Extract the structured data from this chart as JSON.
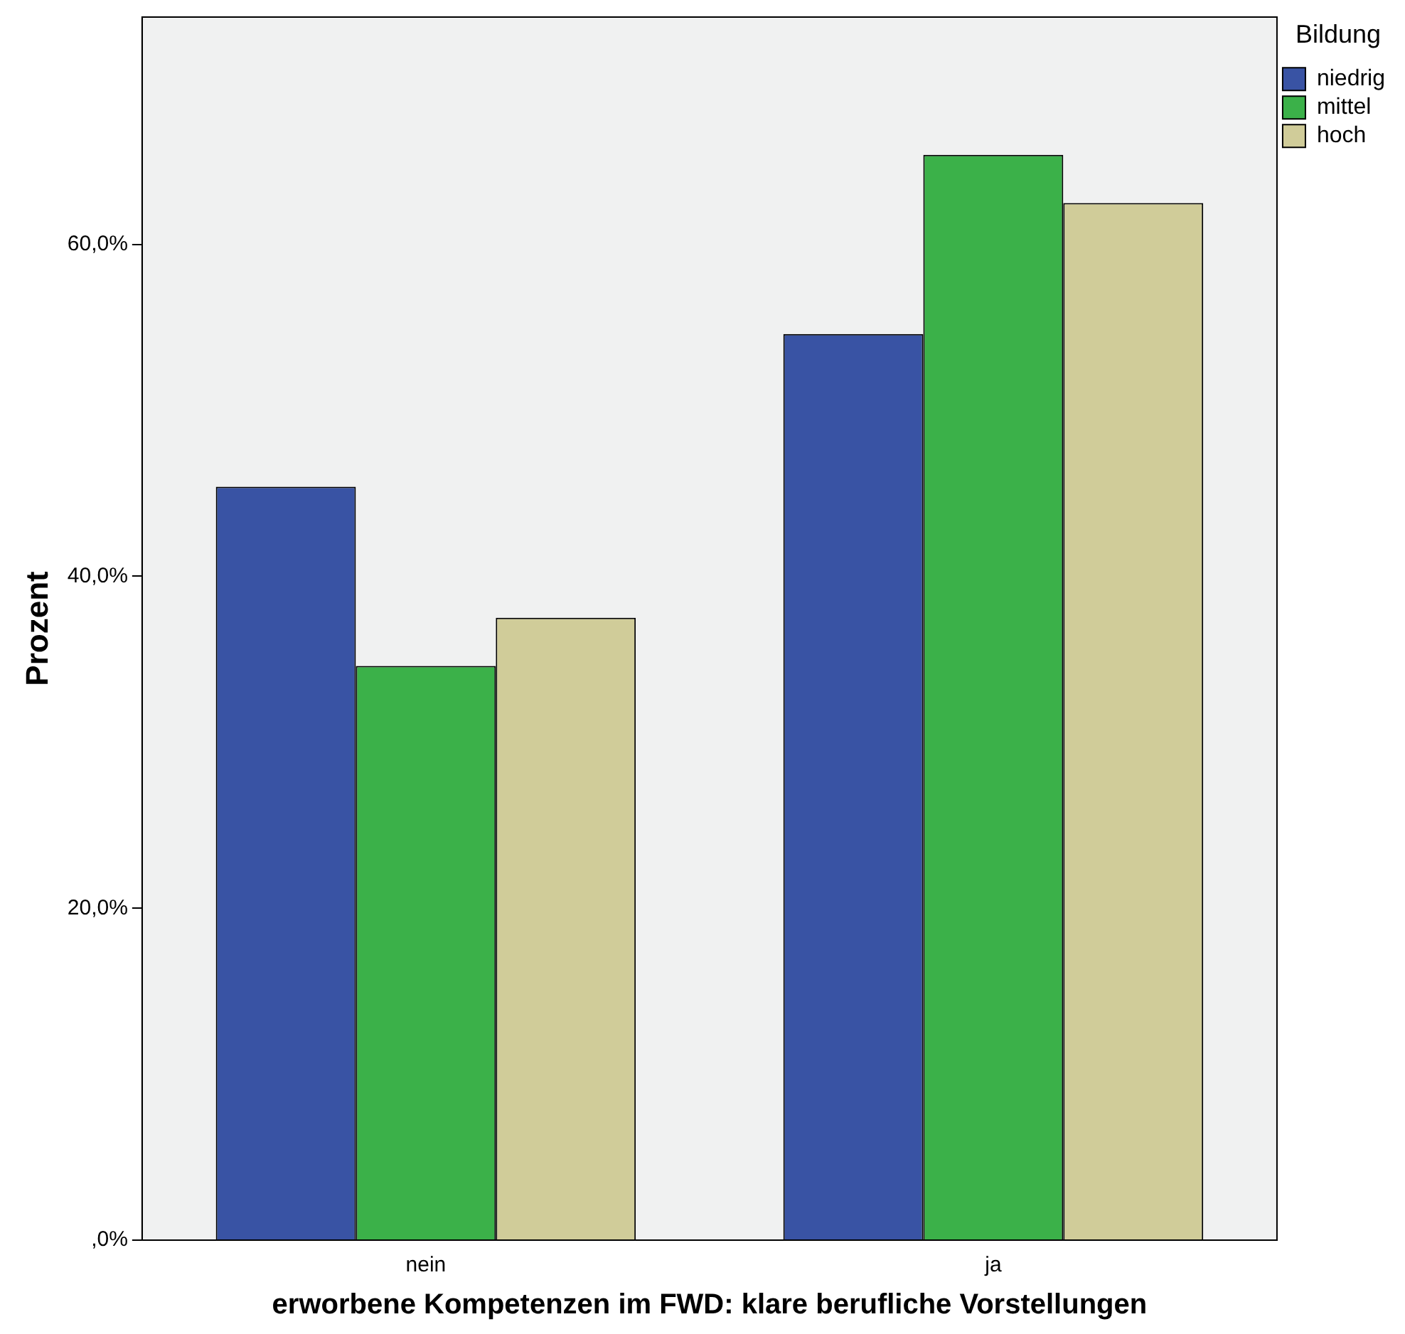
{
  "chart_data": {
    "type": "bar",
    "xlabel": "erworbene Kompetenzen im FWD: klare berufliche Vorstellungen",
    "ylabel": "Prozent",
    "legend_title": "Bildung",
    "categories": [
      "nein",
      "ja"
    ],
    "series": [
      {
        "name": "niedrig",
        "color": "#3953a4",
        "values": [
          45.4,
          54.6
        ]
      },
      {
        "name": "mittel",
        "color": "#3bb149",
        "values": [
          34.6,
          65.4
        ]
      },
      {
        "name": "hoch",
        "color": "#d0cc99",
        "values": [
          37.5,
          62.5
        ]
      }
    ],
    "ylim": [
      0,
      73.7
    ],
    "yticks": [
      {
        "value": 0,
        "label": ",0%"
      },
      {
        "value": 20,
        "label": "20,0%"
      },
      {
        "value": 40,
        "label": "40,0%"
      },
      {
        "value": 60,
        "label": "60,0%"
      }
    ],
    "grid": false,
    "legend": "top right"
  }
}
